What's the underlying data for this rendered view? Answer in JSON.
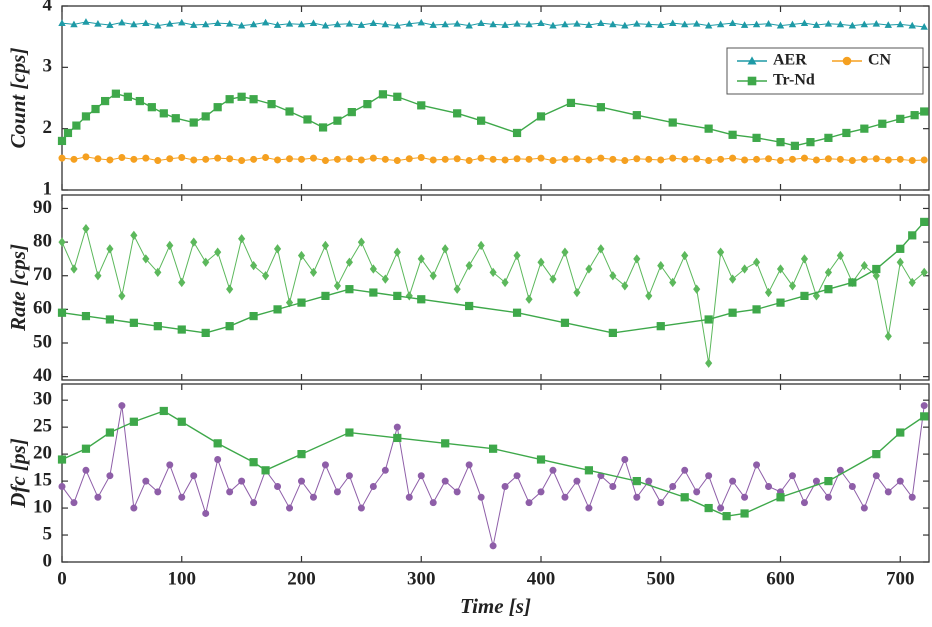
{
  "chart_data": [
    {
      "type": "line",
      "ylabel": "Count [cps]",
      "xlim": [
        0,
        724
      ],
      "ylim": [
        1,
        4
      ],
      "yticks": [
        1,
        2,
        3,
        4
      ],
      "xticks": [
        0,
        100,
        200,
        300,
        400,
        500,
        600,
        700
      ],
      "legend": "upper right",
      "series": [
        {
          "name": "AER",
          "color": "#1e9aa6",
          "marker": "triangle",
          "x": [
            0,
            10,
            20,
            30,
            40,
            50,
            60,
            70,
            80,
            90,
            100,
            110,
            120,
            130,
            140,
            150,
            160,
            170,
            180,
            190,
            200,
            210,
            220,
            230,
            240,
            250,
            260,
            270,
            280,
            290,
            300,
            310,
            320,
            330,
            340,
            350,
            360,
            370,
            380,
            390,
            400,
            410,
            420,
            430,
            440,
            450,
            460,
            470,
            480,
            490,
            500,
            510,
            520,
            530,
            540,
            550,
            560,
            570,
            580,
            590,
            600,
            610,
            620,
            630,
            640,
            650,
            660,
            670,
            680,
            690,
            700,
            710,
            720
          ],
          "values": [
            3.72,
            3.7,
            3.74,
            3.71,
            3.69,
            3.73,
            3.7,
            3.72,
            3.68,
            3.71,
            3.73,
            3.69,
            3.7,
            3.72,
            3.71,
            3.68,
            3.7,
            3.73,
            3.69,
            3.71,
            3.7,
            3.72,
            3.68,
            3.7,
            3.71,
            3.69,
            3.72,
            3.7,
            3.68,
            3.71,
            3.73,
            3.69,
            3.7,
            3.71,
            3.68,
            3.72,
            3.7,
            3.69,
            3.71,
            3.7,
            3.72,
            3.68,
            3.7,
            3.71,
            3.69,
            3.72,
            3.7,
            3.68,
            3.71,
            3.7,
            3.69,
            3.72,
            3.7,
            3.71,
            3.68,
            3.7,
            3.72,
            3.69,
            3.7,
            3.71,
            3.68,
            3.7,
            3.72,
            3.69,
            3.71,
            3.7,
            3.68,
            3.7,
            3.71,
            3.69,
            3.7,
            3.68,
            3.66
          ]
        },
        {
          "name": "CN",
          "color": "#f5a020",
          "marker": "circle",
          "x": [
            0,
            10,
            20,
            30,
            40,
            50,
            60,
            70,
            80,
            90,
            100,
            110,
            120,
            130,
            140,
            150,
            160,
            170,
            180,
            190,
            200,
            210,
            220,
            230,
            240,
            250,
            260,
            270,
            280,
            290,
            300,
            310,
            320,
            330,
            340,
            350,
            360,
            370,
            380,
            390,
            400,
            410,
            420,
            430,
            440,
            450,
            460,
            470,
            480,
            490,
            500,
            510,
            520,
            530,
            540,
            550,
            560,
            570,
            580,
            590,
            600,
            610,
            620,
            630,
            640,
            650,
            660,
            670,
            680,
            690,
            700,
            710,
            720
          ],
          "values": [
            1.52,
            1.5,
            1.54,
            1.51,
            1.49,
            1.53,
            1.5,
            1.52,
            1.48,
            1.51,
            1.53,
            1.49,
            1.5,
            1.52,
            1.51,
            1.48,
            1.5,
            1.53,
            1.49,
            1.51,
            1.5,
            1.52,
            1.48,
            1.5,
            1.51,
            1.49,
            1.52,
            1.5,
            1.48,
            1.51,
            1.53,
            1.49,
            1.5,
            1.51,
            1.48,
            1.52,
            1.5,
            1.49,
            1.51,
            1.5,
            1.52,
            1.48,
            1.5,
            1.51,
            1.49,
            1.52,
            1.5,
            1.48,
            1.51,
            1.5,
            1.49,
            1.52,
            1.5,
            1.51,
            1.48,
            1.5,
            1.52,
            1.49,
            1.5,
            1.51,
            1.48,
            1.5,
            1.52,
            1.49,
            1.51,
            1.5,
            1.48,
            1.5,
            1.51,
            1.49,
            1.5,
            1.48,
            1.49
          ]
        },
        {
          "name": "Tr-Nd",
          "color": "#3ea84a",
          "marker": "square",
          "x": [
            0,
            5,
            12,
            20,
            28,
            36,
            45,
            55,
            65,
            75,
            85,
            95,
            110,
            120,
            130,
            140,
            150,
            160,
            175,
            190,
            205,
            218,
            230,
            242,
            255,
            268,
            280,
            300,
            330,
            350,
            380,
            400,
            425,
            450,
            480,
            510,
            540,
            560,
            580,
            600,
            612,
            625,
            640,
            655,
            670,
            685,
            700,
            712,
            720
          ],
          "values": [
            1.8,
            1.93,
            2.05,
            2.2,
            2.32,
            2.45,
            2.57,
            2.52,
            2.45,
            2.35,
            2.25,
            2.17,
            2.1,
            2.2,
            2.35,
            2.48,
            2.52,
            2.48,
            2.4,
            2.28,
            2.15,
            2.02,
            2.13,
            2.27,
            2.4,
            2.56,
            2.52,
            2.38,
            2.25,
            2.13,
            1.93,
            2.2,
            2.42,
            2.35,
            2.22,
            2.1,
            2.0,
            1.9,
            1.85,
            1.78,
            1.72,
            1.78,
            1.85,
            1.93,
            2.0,
            2.08,
            2.16,
            2.22,
            2.28
          ]
        }
      ]
    },
    {
      "type": "line",
      "ylabel": "Rate [cps]",
      "xlim": [
        0,
        724
      ],
      "ylim": [
        39,
        94
      ],
      "yticks": [
        40,
        50,
        60,
        70,
        80,
        90
      ],
      "xticks": [
        0,
        100,
        200,
        300,
        400,
        500,
        600,
        700
      ],
      "series": [
        {
          "color": "#5cb85c",
          "marker": "diamond",
          "x": [
            0,
            10,
            20,
            30,
            40,
            50,
            60,
            70,
            80,
            90,
            100,
            110,
            120,
            130,
            140,
            150,
            160,
            170,
            180,
            190,
            200,
            210,
            220,
            230,
            240,
            250,
            260,
            270,
            280,
            290,
            300,
            310,
            320,
            330,
            340,
            350,
            360,
            370,
            380,
            390,
            400,
            410,
            420,
            430,
            440,
            450,
            460,
            470,
            480,
            490,
            500,
            510,
            520,
            530,
            540,
            550,
            560,
            570,
            580,
            590,
            600,
            610,
            620,
            630,
            640,
            650,
            660,
            670,
            680,
            690,
            700,
            710,
            720
          ],
          "values": [
            80,
            72,
            84,
            70,
            78,
            64,
            82,
            75,
            71,
            79,
            68,
            80,
            74,
            77,
            66,
            81,
            73,
            70,
            78,
            62,
            76,
            71,
            79,
            67,
            74,
            80,
            72,
            69,
            77,
            64,
            75,
            70,
            78,
            66,
            73,
            79,
            71,
            68,
            76,
            63,
            74,
            69,
            77,
            65,
            72,
            78,
            70,
            67,
            75,
            64,
            73,
            68,
            76,
            66,
            44,
            77,
            69,
            72,
            74,
            65,
            72,
            67,
            75,
            64,
            71,
            76,
            68,
            73,
            70,
            52,
            74,
            68,
            71
          ]
        },
        {
          "color": "#3ea84a",
          "marker": "square",
          "x": [
            0,
            20,
            40,
            60,
            80,
            100,
            120,
            140,
            160,
            180,
            200,
            220,
            240,
            260,
            280,
            300,
            340,
            380,
            420,
            460,
            500,
            540,
            560,
            580,
            600,
            620,
            640,
            660,
            680,
            700,
            710,
            720
          ],
          "values": [
            59,
            58,
            57,
            56,
            55,
            54,
            53,
            55,
            58,
            60,
            62,
            64,
            66,
            65,
            64,
            63,
            61,
            59,
            56,
            53,
            55,
            57,
            59,
            60,
            62,
            64,
            66,
            68,
            72,
            78,
            82,
            86
          ]
        }
      ]
    },
    {
      "type": "line",
      "ylabel": "Dfc [ps]",
      "xlabel": "Time [s]",
      "xlim": [
        0,
        724
      ],
      "ylim": [
        0,
        33
      ],
      "yticks": [
        0,
        5,
        10,
        15,
        20,
        25,
        30
      ],
      "xticks": [
        0,
        100,
        200,
        300,
        400,
        500,
        600,
        700
      ],
      "series": [
        {
          "color": "#8e5ea8",
          "marker": "circle",
          "x": [
            0,
            10,
            20,
            30,
            40,
            50,
            60,
            70,
            80,
            90,
            100,
            110,
            120,
            130,
            140,
            150,
            160,
            170,
            180,
            190,
            200,
            210,
            220,
            230,
            240,
            250,
            260,
            270,
            280,
            290,
            300,
            310,
            320,
            330,
            340,
            350,
            360,
            370,
            380,
            390,
            400,
            410,
            420,
            430,
            440,
            450,
            460,
            470,
            480,
            490,
            500,
            510,
            520,
            530,
            540,
            550,
            560,
            570,
            580,
            590,
            600,
            610,
            620,
            630,
            640,
            650,
            660,
            670,
            680,
            690,
            700,
            710,
            720
          ],
          "values": [
            14,
            11,
            17,
            12,
            16,
            29,
            10,
            15,
            13,
            18,
            12,
            16,
            9,
            19,
            13,
            15,
            11,
            17,
            14,
            10,
            15,
            12,
            18,
            13,
            16,
            10,
            14,
            17,
            25,
            12,
            16,
            11,
            15,
            13,
            18,
            12,
            3,
            14,
            16,
            11,
            13,
            17,
            12,
            15,
            10,
            16,
            14,
            19,
            12,
            15,
            11,
            14,
            17,
            13,
            16,
            10,
            15,
            12,
            18,
            14,
            13,
            16,
            11,
            15,
            12,
            17,
            14,
            10,
            16,
            13,
            15,
            12,
            29
          ]
        },
        {
          "color": "#3ea84a",
          "marker": "square",
          "x": [
            0,
            20,
            40,
            60,
            85,
            100,
            130,
            160,
            170,
            200,
            240,
            280,
            320,
            360,
            400,
            440,
            480,
            520,
            540,
            555,
            570,
            600,
            640,
            680,
            700,
            720
          ],
          "values": [
            19,
            21,
            24,
            26,
            28,
            26,
            22,
            18.5,
            17,
            20,
            24,
            23,
            22,
            21,
            19,
            17,
            15,
            12,
            10,
            8.5,
            9,
            12,
            15,
            20,
            24,
            27
          ]
        }
      ]
    }
  ]
}
